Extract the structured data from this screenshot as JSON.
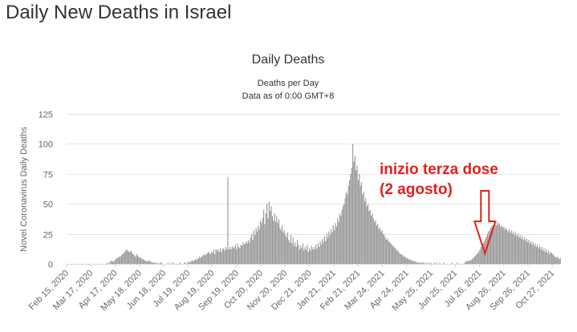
{
  "page": {
    "title": "Daily New Deaths in Israel"
  },
  "chart_data": {
    "type": "bar",
    "title": "Daily Deaths",
    "subtitle": "Deaths per Day",
    "subtitle2": "Data as of 0:00 GMT+8",
    "ylabel": "Novel Coronavirus Daily Deaths",
    "xlabel": "",
    "ylim": [
      0,
      125
    ],
    "yticks": [
      0,
      25,
      50,
      75,
      100,
      125
    ],
    "grid": true,
    "legend": "none",
    "bar_color": "#999999",
    "x_tick_labels": [
      "Feb 15, 2020",
      "Mar 17, 2020",
      "Apr 17, 2020",
      "May 18, 2020",
      "Jun 18, 2020",
      "Jul 19, 2020",
      "Aug 19, 2020",
      "Sep 19, 2020",
      "Oct 20, 2020",
      "Nov 20, 2020",
      "Dec 21, 2020",
      "Jan 21, 2021",
      "Feb 21, 2021",
      "Mar 24, 2021",
      "Apr 24, 2021",
      "May 25, 2021",
      "Jun 25, 2021",
      "Jul 26, 2021",
      "Aug 26, 2021",
      "Sep 26, 2021",
      "Oct 27, 2021"
    ],
    "x_start": "Feb 15, 2020",
    "x_end": "Nov 07, 2021",
    "values": [
      0,
      0,
      0,
      0,
      0,
      0,
      0,
      0,
      0,
      0,
      0,
      0,
      0,
      0,
      0,
      0,
      0,
      0,
      0,
      0,
      0,
      0,
      0,
      0,
      0,
      0,
      0,
      0,
      0,
      0,
      0,
      0,
      0,
      0,
      0,
      0,
      0,
      1,
      0,
      1,
      2,
      3,
      2,
      2,
      3,
      4,
      5,
      5,
      6,
      6,
      7,
      8,
      9,
      10,
      11,
      12,
      11,
      10,
      10,
      11,
      9,
      8,
      7,
      6,
      8,
      7,
      6,
      5,
      5,
      4,
      4,
      3,
      3,
      2,
      2,
      3,
      2,
      2,
      1,
      1,
      1,
      1,
      1,
      0,
      1,
      0,
      1,
      1,
      0,
      0,
      0,
      0,
      0,
      1,
      0,
      0,
      1,
      0,
      1,
      0,
      0,
      0,
      0,
      0,
      1,
      0,
      0,
      0,
      1,
      1,
      0,
      1,
      2,
      1,
      2,
      3,
      2,
      3,
      4,
      3,
      5,
      4,
      6,
      5,
      6,
      7,
      8,
      7,
      8,
      9,
      10,
      9,
      8,
      10,
      9,
      12,
      8,
      12,
      11,
      12,
      10,
      13,
      10,
      12,
      13,
      11,
      14,
      12,
      72,
      12,
      14,
      12,
      15,
      13,
      14,
      16,
      12,
      17,
      14,
      13,
      16,
      15,
      18,
      16,
      17,
      19,
      17,
      20,
      18,
      22,
      25,
      20,
      28,
      24,
      30,
      27,
      32,
      29,
      36,
      34,
      38,
      45,
      33,
      42,
      50,
      38,
      52,
      44,
      48,
      40,
      36,
      42,
      35,
      40,
      34,
      37,
      30,
      28,
      32,
      26,
      28,
      24,
      22,
      26,
      20,
      18,
      24,
      17,
      22,
      15,
      18,
      14,
      20,
      16,
      12,
      15,
      13,
      17,
      11,
      14,
      12,
      16,
      10,
      13,
      11,
      15,
      12,
      14,
      12,
      16,
      13,
      17,
      14,
      19,
      16,
      21,
      18,
      23,
      19,
      25,
      22,
      27,
      24,
      29,
      26,
      32,
      28,
      34,
      31,
      38,
      35,
      42,
      40,
      45,
      48,
      50,
      55,
      60,
      58,
      65,
      70,
      75,
      80,
      100,
      85,
      90,
      78,
      82,
      70,
      75,
      65,
      68,
      58,
      60,
      52,
      55,
      48,
      50,
      44,
      45,
      40,
      42,
      38,
      35,
      36,
      32,
      33,
      29,
      30,
      27,
      28,
      25,
      24,
      22,
      20,
      21,
      19,
      18,
      17,
      16,
      15,
      14,
      13,
      12,
      11,
      10,
      9,
      8,
      8,
      7,
      6,
      6,
      5,
      5,
      4,
      4,
      3,
      3,
      3,
      2,
      2,
      2,
      1,
      1,
      1,
      1,
      1,
      1,
      1,
      1,
      0,
      1,
      0,
      1,
      0,
      1,
      0,
      0,
      1,
      0,
      1,
      0,
      0,
      1,
      0,
      0,
      0,
      1,
      0,
      0,
      0,
      0,
      0,
      0,
      1,
      0,
      0,
      0,
      0,
      1,
      0,
      0,
      0,
      0,
      0,
      0,
      1,
      2,
      2,
      3,
      2,
      3,
      3,
      4,
      5,
      6,
      7,
      8,
      9,
      10,
      12,
      14,
      15,
      17,
      19,
      21,
      23,
      25,
      27,
      28,
      30,
      32,
      31,
      33,
      34,
      32,
      35,
      33,
      34,
      31,
      32,
      30,
      31,
      29,
      30,
      28,
      27,
      29,
      26,
      28,
      25,
      27,
      24,
      26,
      23,
      25,
      22,
      24,
      21,
      23,
      20,
      22,
      19,
      21,
      18,
      20,
      17,
      19,
      16,
      18,
      15,
      17,
      14,
      16,
      13,
      15,
      12,
      14,
      11,
      13,
      10,
      12,
      9,
      11,
      8,
      10,
      9,
      8,
      7,
      6,
      5,
      6,
      5,
      4,
      5
    ],
    "annotation": {
      "line1": "inizio terza dose",
      "line2": "(2 agosto)",
      "date": "Aug 02, 2021",
      "color": "#e3201b"
    }
  }
}
